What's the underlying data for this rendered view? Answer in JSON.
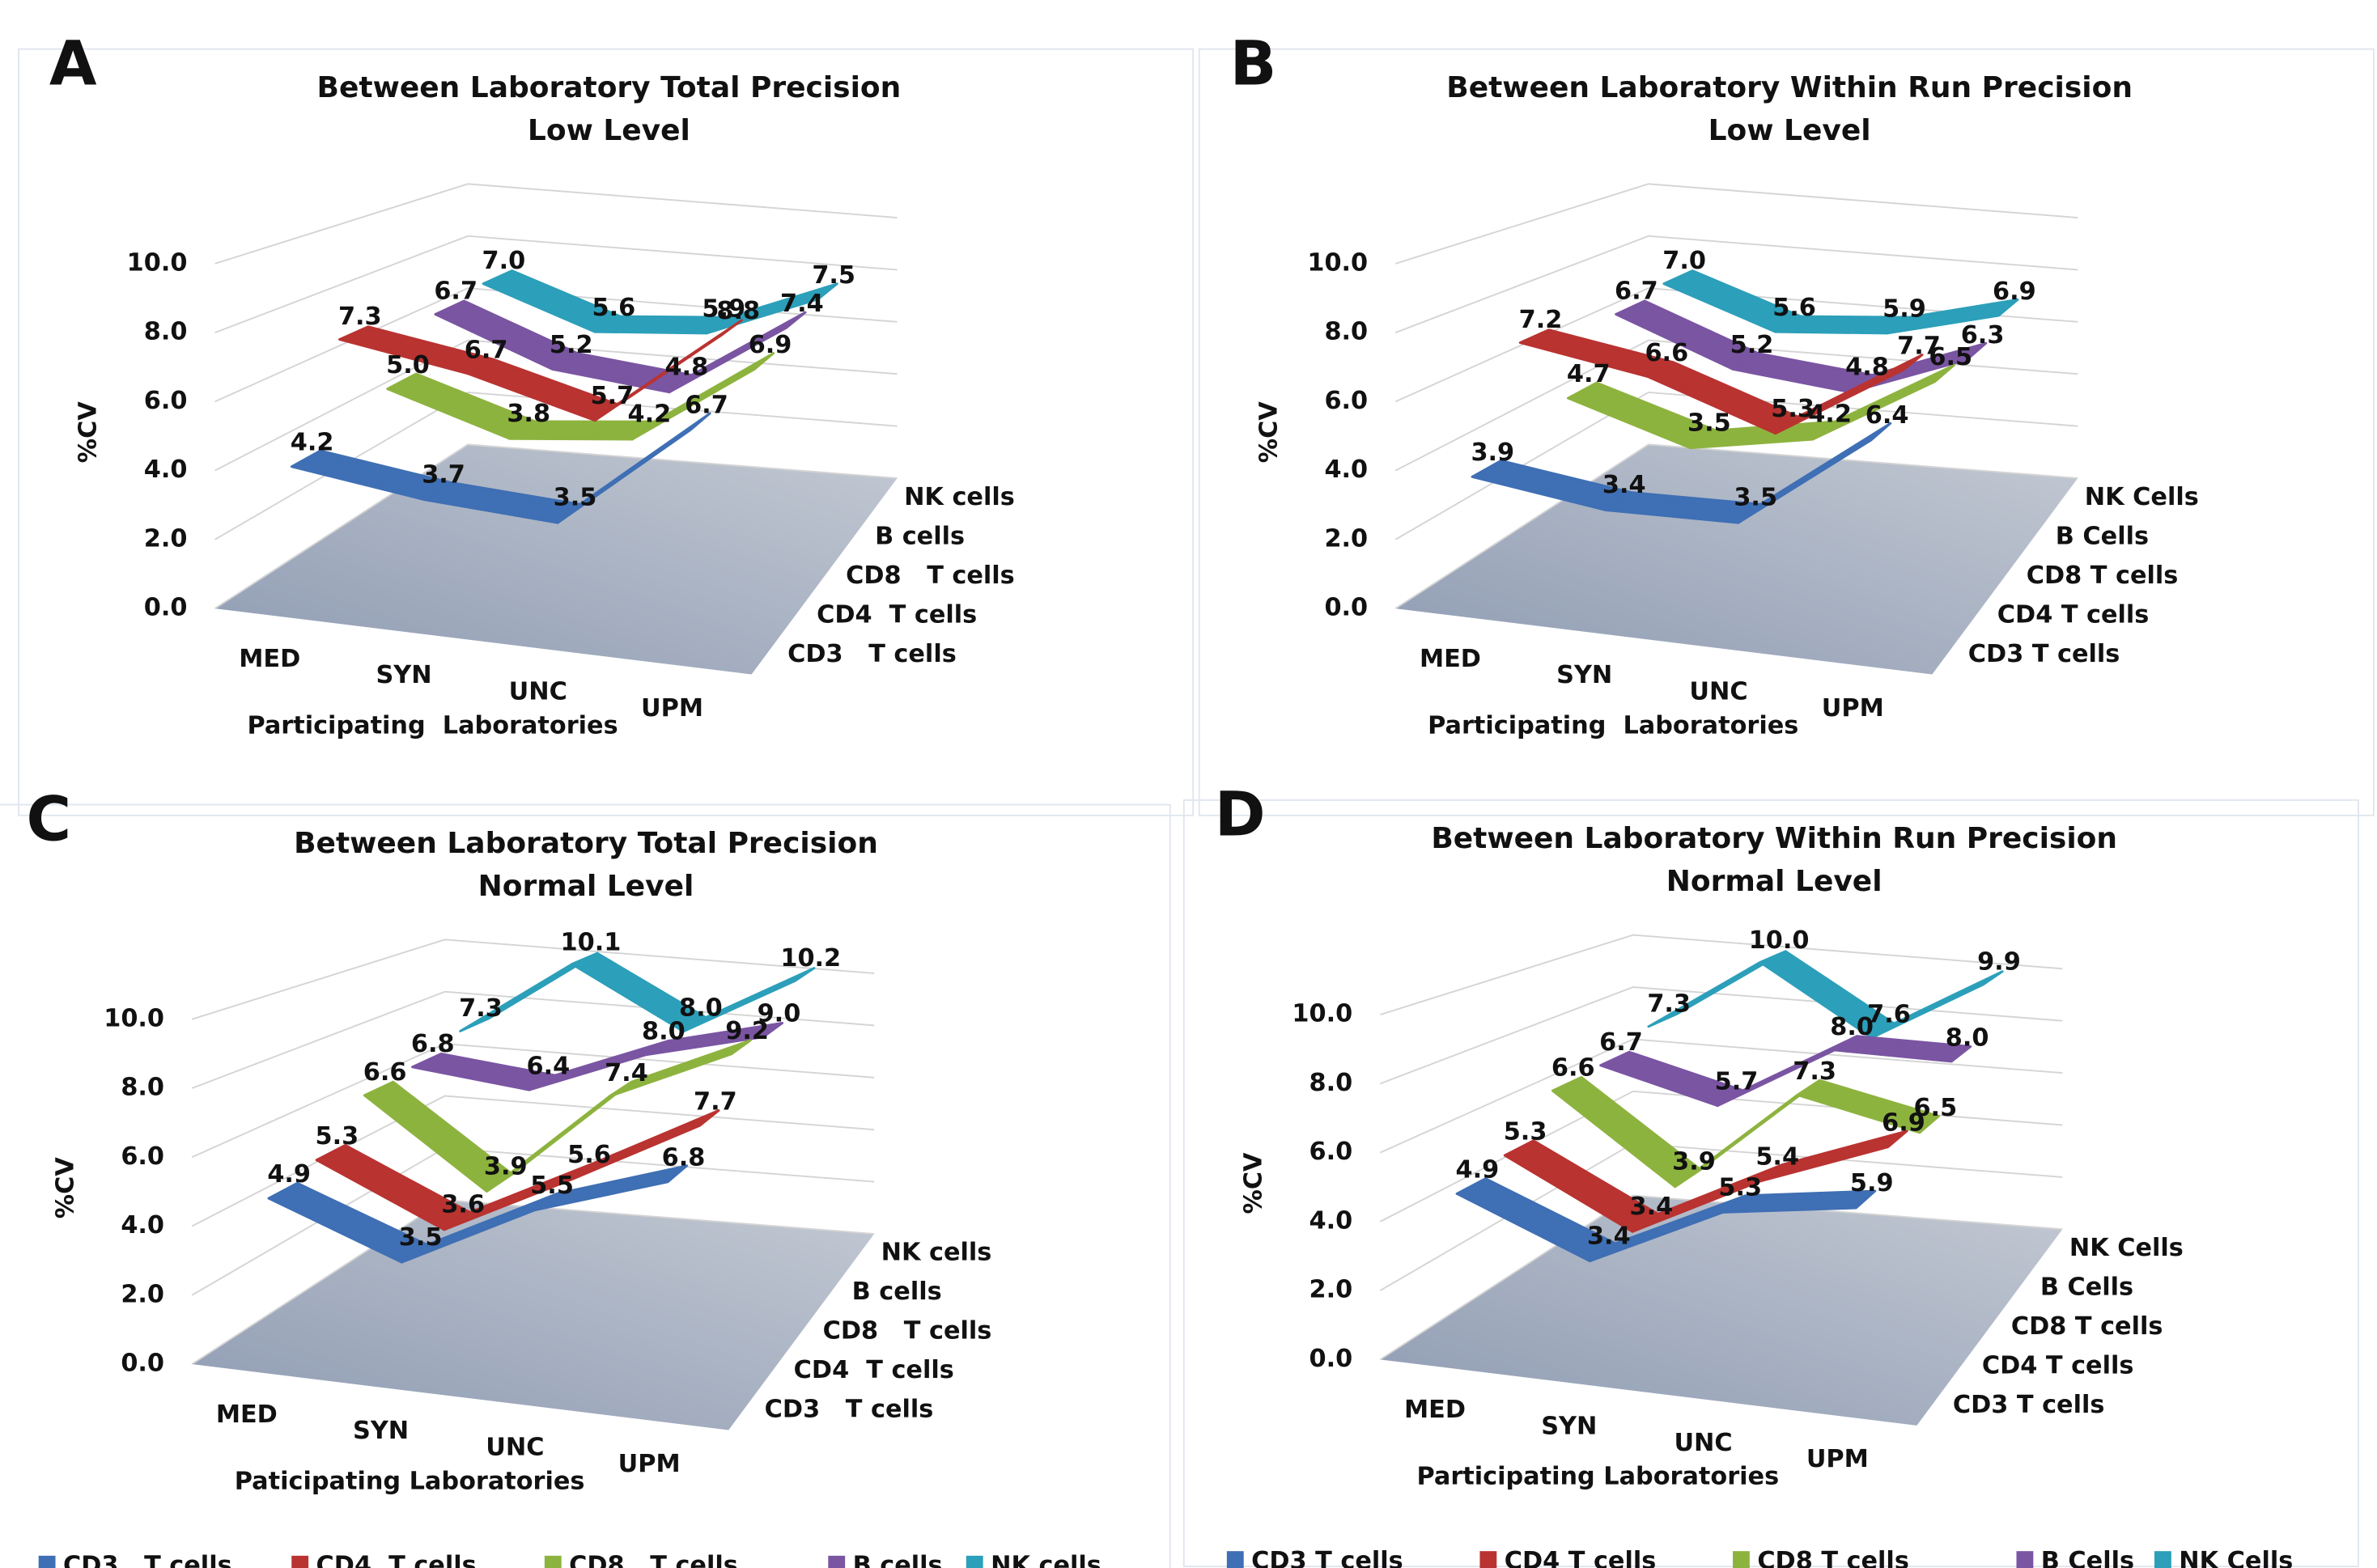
{
  "chart_data": [
    {
      "type": "line",
      "panel_label": "A",
      "title": "Between Laboratory Total Precision",
      "subtitle": "Low Level",
      "x_label": "Participating  Laboratories",
      "y_label": "%CV",
      "categories": [
        "MED",
        "SYN",
        "UNC",
        "UPM"
      ],
      "ylim": [
        0,
        10
      ],
      "yticks": [
        {
          "value": 0,
          "label": "0.0"
        },
        {
          "value": 2,
          "label": "2.0"
        },
        {
          "value": 4,
          "label": "4.0"
        },
        {
          "value": 6,
          "label": "6.0"
        },
        {
          "value": 8,
          "label": "8.0"
        },
        {
          "value": 10,
          "label": "10.0"
        }
      ],
      "grid": true,
      "legend": false,
      "series": [
        {
          "name": "CD3   T cells",
          "color": "#3f6fb4",
          "values": [
            4.2,
            3.7,
            3.5,
            6.7
          ],
          "value_labels": [
            "4.2",
            "3.7",
            "3.5",
            "6.7"
          ]
        },
        {
          "name": "CD4  T cells",
          "color": "#b93331",
          "values": [
            7.3,
            6.7,
            5.7,
            8.8
          ],
          "value_labels": [
            "7.3",
            "6.7",
            "5.7",
            "8.8"
          ]
        },
        {
          "name": "CD8   T cells",
          "color": "#8db33f",
          "values": [
            5.0,
            3.8,
            4.2,
            6.9
          ],
          "value_labels": [
            "5.0",
            "3.8",
            "4.2",
            "6.9"
          ]
        },
        {
          "name": "B cells",
          "color": "#7a55a2",
          "values": [
            6.7,
            5.2,
            4.8,
            7.4
          ],
          "value_labels": [
            "6.7",
            "5.2",
            "4.8",
            "7.4"
          ]
        },
        {
          "name": "NK cells",
          "color": "#2c9fba",
          "values": [
            7.0,
            5.6,
            5.9,
            7.5
          ],
          "value_labels": [
            "7.0",
            "5.6",
            "5.9",
            "7.5"
          ]
        }
      ]
    },
    {
      "type": "line",
      "panel_label": "B",
      "title": "Between Laboratory Within Run Precision",
      "subtitle": "Low Level",
      "x_label": "Participating  Laboratories",
      "y_label": "%CV",
      "categories": [
        "MED",
        "SYN",
        "UNC",
        "UPM"
      ],
      "ylim": [
        0,
        10
      ],
      "yticks": [
        {
          "value": 0,
          "label": "0.0"
        },
        {
          "value": 2,
          "label": "2.0"
        },
        {
          "value": 4,
          "label": "4.0"
        },
        {
          "value": 6,
          "label": "6.0"
        },
        {
          "value": 8,
          "label": "8.0"
        },
        {
          "value": 10,
          "label": "10.0"
        }
      ],
      "grid": true,
      "legend": false,
      "series": [
        {
          "name": "CD3 T cells",
          "color": "#3f6fb4",
          "values": [
            3.9,
            3.4,
            3.5,
            6.4
          ],
          "value_labels": [
            "3.9",
            "3.4",
            "3.5",
            "6.4"
          ]
        },
        {
          "name": "CD4 T cells",
          "color": "#b93331",
          "values": [
            7.2,
            6.6,
            5.3,
            7.7
          ],
          "value_labels": [
            "7.2",
            "6.6",
            "5.3",
            "7.7"
          ]
        },
        {
          "name": "CD8 T cells",
          "color": "#8db33f",
          "values": [
            4.7,
            3.5,
            4.2,
            6.5
          ],
          "value_labels": [
            "4.7",
            "3.5",
            "4.2",
            "6.5"
          ]
        },
        {
          "name": "B Cells",
          "color": "#7a55a2",
          "values": [
            6.7,
            5.2,
            4.8,
            6.3
          ],
          "value_labels": [
            "6.7",
            "5.2",
            "4.8",
            "6.3"
          ]
        },
        {
          "name": "NK Cells",
          "color": "#2c9fba",
          "values": [
            7.0,
            5.6,
            5.9,
            6.9
          ],
          "value_labels": [
            "7.0",
            "5.6",
            "5.9",
            "6.9"
          ]
        }
      ]
    },
    {
      "type": "line",
      "panel_label": "C",
      "title": "Between Laboratory Total Precision",
      "subtitle": "Normal Level",
      "x_label": "Paticipating Laboratories",
      "y_label": "%CV",
      "categories": [
        "MED",
        "SYN",
        "UNC",
        "UPM"
      ],
      "ylim": [
        0,
        10
      ],
      "yticks": [
        {
          "value": 0,
          "label": "0.0"
        },
        {
          "value": 2,
          "label": "2.0"
        },
        {
          "value": 4,
          "label": "4.0"
        },
        {
          "value": 6,
          "label": "6.0"
        },
        {
          "value": 8,
          "label": "8.0"
        },
        {
          "value": 10,
          "label": "10.0"
        }
      ],
      "grid": true,
      "legend": "bottom",
      "series": [
        {
          "name": "CD3   T cells",
          "color": "#3f6fb4",
          "values": [
            4.9,
            3.5,
            5.5,
            6.8
          ],
          "value_labels": [
            "4.9",
            "3.5",
            "5.5",
            "6.8"
          ]
        },
        {
          "name": "CD4  T cells",
          "color": "#b93331",
          "values": [
            5.3,
            3.6,
            5.6,
            7.7
          ],
          "value_labels": [
            "5.3",
            "3.6",
            "5.6",
            "7.7"
          ]
        },
        {
          "name": "CD8   T cells",
          "color": "#8db33f",
          "values": [
            6.6,
            3.9,
            7.4,
            9.2
          ],
          "value_labels": [
            "6.6",
            "3.9",
            "7.4",
            "9.2"
          ]
        },
        {
          "name": "B cells",
          "color": "#7a55a2",
          "values": [
            6.8,
            6.4,
            8.0,
            9.0
          ],
          "value_labels": [
            "6.8",
            "6.4",
            "8.0",
            "9.0"
          ]
        },
        {
          "name": "NK cells",
          "color": "#2c9fba",
          "values": [
            7.3,
            10.1,
            8.0,
            10.2
          ],
          "value_labels": [
            "7.3",
            "10.1",
            "8.0",
            "10.2"
          ]
        }
      ]
    },
    {
      "type": "line",
      "panel_label": "D",
      "title": "Between Laboratory Within Run Precision",
      "subtitle": "Normal Level",
      "x_label": "Participating Laboratories",
      "y_label": "%CV",
      "categories": [
        "MED",
        "SYN",
        "UNC",
        "UPM"
      ],
      "ylim": [
        0,
        10
      ],
      "yticks": [
        {
          "value": 0,
          "label": "0.0"
        },
        {
          "value": 2,
          "label": "2.0"
        },
        {
          "value": 4,
          "label": "4.0"
        },
        {
          "value": 6,
          "label": "6.0"
        },
        {
          "value": 8,
          "label": "8.0"
        },
        {
          "value": 10,
          "label": "10.0"
        }
      ],
      "grid": true,
      "legend": "bottom",
      "series": [
        {
          "name": "CD3 T cells",
          "color": "#3f6fb4",
          "values": [
            4.9,
            3.4,
            5.3,
            5.9
          ],
          "value_labels": [
            "4.9",
            "3.4",
            "5.3",
            "5.9"
          ]
        },
        {
          "name": "CD4 T cells",
          "color": "#b93331",
          "values": [
            5.3,
            3.4,
            5.4,
            6.9
          ],
          "value_labels": [
            "5.3",
            "3.4",
            "5.4",
            "6.9"
          ]
        },
        {
          "name": "CD8 T cells",
          "color": "#8db33f",
          "values": [
            6.6,
            3.9,
            7.3,
            6.5
          ],
          "value_labels": [
            "6.6",
            "3.9",
            "7.3",
            "6.5"
          ]
        },
        {
          "name": "B Cells",
          "color": "#7a55a2",
          "values": [
            6.7,
            5.7,
            8.0,
            8.0
          ],
          "value_labels": [
            "6.7",
            "5.7",
            "8.0",
            "8.0"
          ]
        },
        {
          "name": "NK Cells",
          "color": "#2c9fba",
          "values": [
            7.3,
            10.0,
            7.6,
            9.9
          ],
          "value_labels": [
            "7.3",
            "10.0",
            "7.6",
            "9.9"
          ]
        }
      ]
    }
  ]
}
